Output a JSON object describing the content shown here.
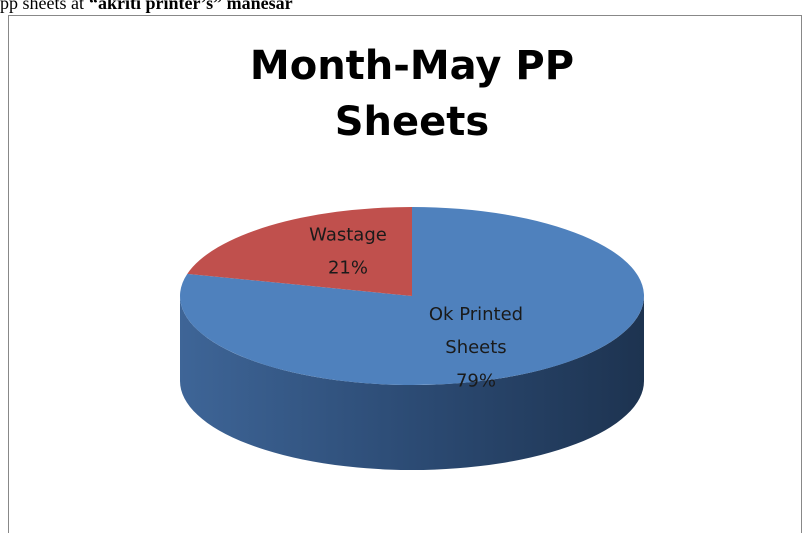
{
  "caption": {
    "text": "pp sheets at",
    "emphasis": "“akriti printer’s” manesar"
  },
  "chart_data": {
    "type": "pie",
    "title": "Month-May PP Sheets",
    "categories": [
      "Ok Printed Sheets",
      "Wastage"
    ],
    "values": [
      79,
      21
    ],
    "value_labels": [
      "79%",
      "21%"
    ],
    "colors": [
      "#4f81bd",
      "#c0504d"
    ],
    "style_3d": true
  }
}
